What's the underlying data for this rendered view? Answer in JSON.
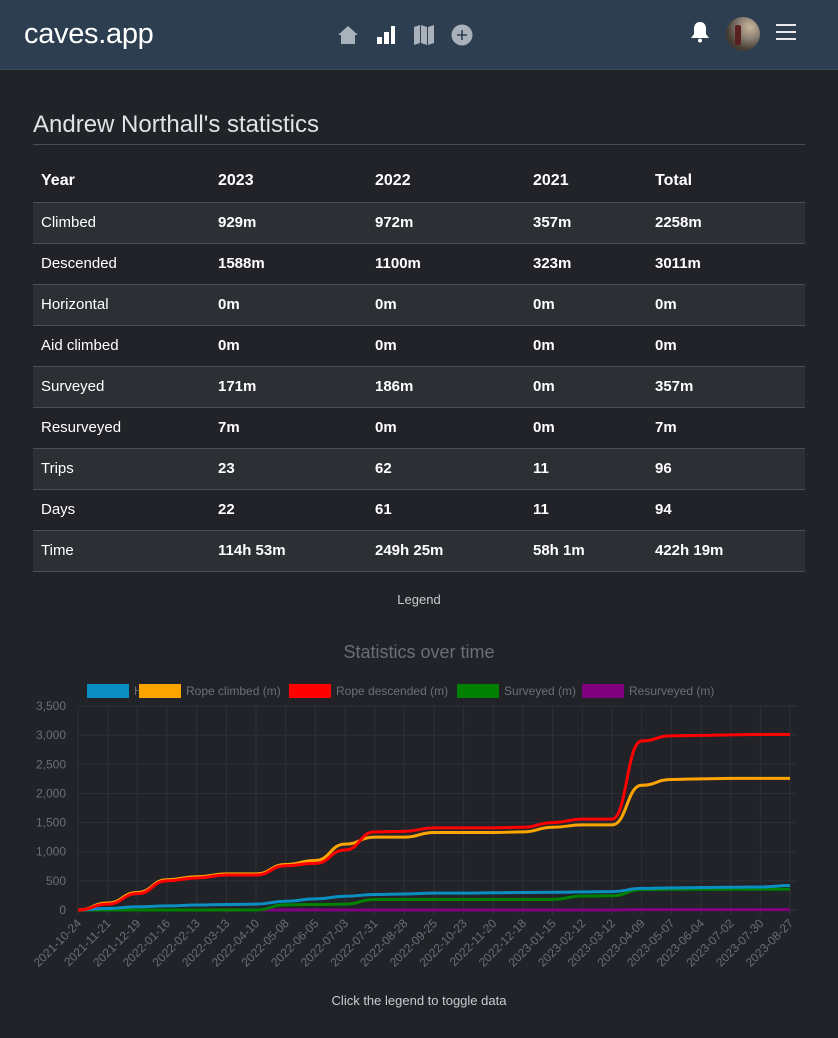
{
  "navbar": {
    "brand": "caves.app",
    "icons": [
      "home-icon",
      "stats-bars-icon",
      "map-icon",
      "add-circle-icon"
    ],
    "right_icons": [
      "bell-icon",
      "avatar",
      "hamburger-menu-icon"
    ]
  },
  "page": {
    "title": "Andrew Northall's statistics",
    "legend_label": "Legend",
    "footnote": "Click the legend to toggle data"
  },
  "table": {
    "headers": [
      "Year",
      "2023",
      "2022",
      "2021",
      "Total"
    ],
    "rows": [
      [
        "Climbed",
        "929m",
        "972m",
        "357m",
        "2258m"
      ],
      [
        "Descended",
        "1588m",
        "1100m",
        "323m",
        "3011m"
      ],
      [
        "Horizontal",
        "0m",
        "0m",
        "0m",
        "0m"
      ],
      [
        "Aid climbed",
        "0m",
        "0m",
        "0m",
        "0m"
      ],
      [
        "Surveyed",
        "171m",
        "186m",
        "0m",
        "357m"
      ],
      [
        "Resurveyed",
        "7m",
        "0m",
        "0m",
        "7m"
      ],
      [
        "Trips",
        "23",
        "62",
        "11",
        "96"
      ],
      [
        "Days",
        "22",
        "61",
        "11",
        "94"
      ],
      [
        "Time",
        "114h 53m",
        "249h 25m",
        "58h 1m",
        "422h 19m"
      ]
    ]
  },
  "chart_data": {
    "type": "line",
    "title": "Statistics over time",
    "xlabel": "",
    "ylabel": "",
    "ylim": [
      0,
      3500
    ],
    "yticks": [
      "0",
      "500",
      "1,000",
      "1,500",
      "2,000",
      "2,500",
      "3,000",
      "3,500"
    ],
    "ytick_values": [
      0,
      500,
      1000,
      1500,
      2000,
      2500,
      3000,
      3500
    ],
    "grid": true,
    "legend_position": "top",
    "x": [
      "2021-10-24",
      "2021-11-21",
      "2021-12-19",
      "2022-01-16",
      "2022-02-13",
      "2022-03-13",
      "2022-04-10",
      "2022-05-08",
      "2022-06-05",
      "2022-07-03",
      "2022-07-31",
      "2022-08-28",
      "2022-09-25",
      "2022-10-23",
      "2022-11-20",
      "2022-12-18",
      "2023-01-15",
      "2023-02-12",
      "2023-03-12",
      "2023-04-09",
      "2023-05-07",
      "2023-06-04",
      "2023-07-02",
      "2023-07-30",
      "2023-08-27"
    ],
    "series": [
      {
        "name": "Hours",
        "color": "#0b8ec2",
        "values": [
          0,
          25,
          55,
          70,
          85,
          95,
          100,
          150,
          190,
          235,
          265,
          275,
          290,
          290,
          295,
          300,
          305,
          310,
          315,
          370,
          380,
          385,
          390,
          395,
          420
        ]
      },
      {
        "name": "Rope climbed (m)",
        "color": "#ffa500",
        "values": [
          0,
          120,
          300,
          520,
          570,
          620,
          620,
          780,
          850,
          1130,
          1250,
          1250,
          1330,
          1330,
          1330,
          1340,
          1420,
          1460,
          1460,
          2140,
          2240,
          2250,
          2258,
          2258,
          2258
        ]
      },
      {
        "name": "Rope descended (m)",
        "color": "#ff0000",
        "values": [
          0,
          100,
          280,
          500,
          550,
          600,
          600,
          760,
          800,
          1030,
          1340,
          1350,
          1410,
          1410,
          1410,
          1420,
          1500,
          1560,
          1560,
          2900,
          2990,
          2995,
          3005,
          3011,
          3011
        ]
      },
      {
        "name": "Surveyed (m)",
        "color": "#008000",
        "values": [
          0,
          0,
          0,
          0,
          0,
          0,
          0,
          90,
          95,
          100,
          180,
          180,
          180,
          180,
          180,
          180,
          180,
          240,
          245,
          350,
          355,
          357,
          357,
          357,
          357
        ]
      },
      {
        "name": "Resurveyed (m)",
        "color": "#800080",
        "values": [
          0,
          0,
          0,
          0,
          0,
          0,
          0,
          0,
          0,
          0,
          0,
          0,
          0,
          0,
          0,
          0,
          0,
          0,
          0,
          7,
          7,
          7,
          7,
          7,
          7
        ]
      }
    ],
    "x_tick_labels": [
      "2021-10-24",
      "2021-11-21",
      "2021-12-19",
      "2022-01-16",
      "2022-02-13",
      "2022-03-13",
      "2022-04-10",
      "2022-05-08",
      "2022-06-05",
      "2022-07-03",
      "2022-07-31",
      "2022-08-28",
      "2022-09-25",
      "2022-10-23",
      "2022-11-20",
      "2022-12-18",
      "2023-01-15",
      "2023-02-12",
      "2023-03-12",
      "2023-04-09",
      "2023-05-07",
      "2023-06-04",
      "2023-07-02",
      "2023-07-30",
      "2023-08-27"
    ]
  }
}
